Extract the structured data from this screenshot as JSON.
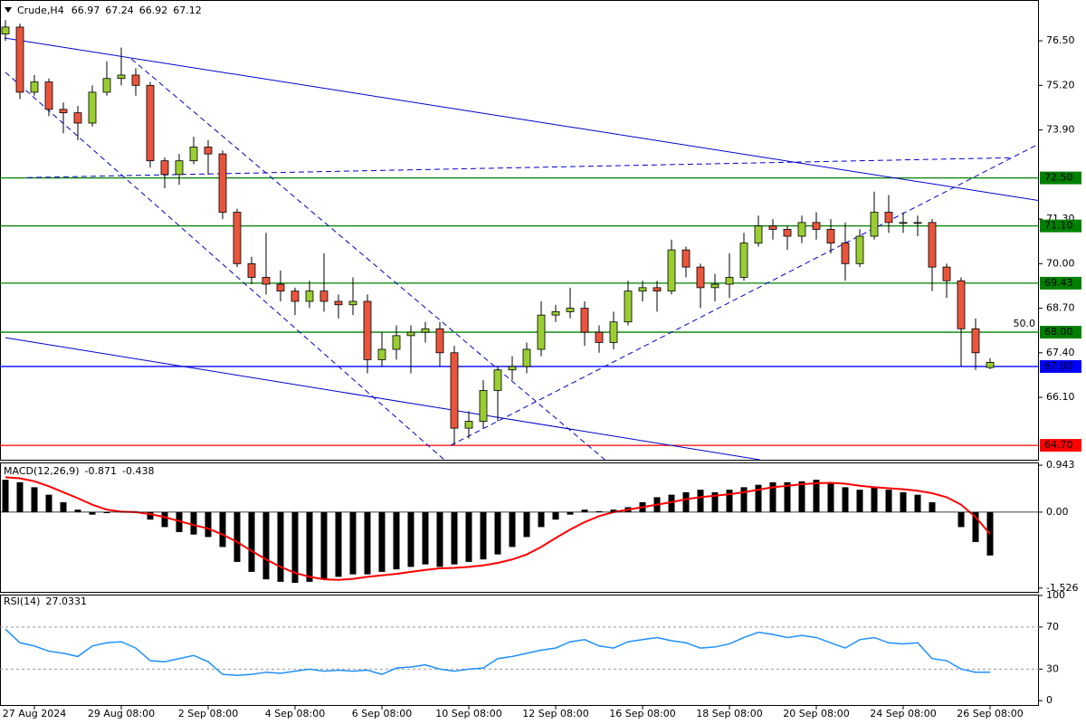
{
  "chart_data": [
    {
      "type": "candlestick",
      "title": "Crude,H4",
      "categories": [
        null,
        null,
        "27 Aug 2024",
        null,
        null,
        null,
        null,
        null,
        "29 Aug 08:00",
        null,
        null,
        null,
        null,
        null,
        "2 Sep 08:00",
        null,
        null,
        null,
        null,
        null,
        "4 Sep 08:00",
        null,
        null,
        null,
        null,
        null,
        "6 Sep 08:00",
        null,
        null,
        null,
        null,
        null,
        "10 Sep 08:00",
        null,
        null,
        null,
        null,
        null,
        "12 Sep 08:00",
        null,
        null,
        null,
        null,
        null,
        "16 Sep 08:00",
        null,
        null,
        null,
        null,
        null,
        "18 Sep 08:00",
        null,
        null,
        null,
        null,
        null,
        "20 Sep 08:00",
        null,
        null,
        null,
        null,
        null,
        "24 Sep 08:00",
        null,
        null,
        null,
        null,
        null,
        "26 Sep 08:00"
      ],
      "open": [
        76.7,
        76.9,
        75.0,
        75.3,
        74.5,
        74.4,
        74.1,
        75.0,
        75.4,
        75.5,
        75.2,
        73.0,
        72.6,
        73.0,
        73.4,
        73.2,
        71.5,
        70.0,
        69.6,
        69.4,
        69.2,
        68.9,
        69.2,
        68.9,
        68.8,
        68.9,
        67.2,
        67.5,
        67.9,
        68.0,
        68.1,
        67.4,
        65.2,
        65.4,
        66.3,
        66.9,
        67.0,
        67.5,
        68.5,
        68.6,
        68.7,
        68.0,
        67.7,
        68.3,
        69.2,
        69.3,
        69.2,
        70.4,
        69.9,
        69.3,
        69.4,
        69.6,
        70.6,
        71.1,
        71.0,
        70.8,
        71.2,
        71.0,
        70.6,
        70.0,
        70.8,
        71.5,
        71.2,
        71.2,
        71.2,
        69.9,
        69.5,
        68.1,
        66.97
      ],
      "high": [
        77.1,
        77.0,
        75.5,
        75.4,
        74.7,
        74.6,
        75.2,
        75.9,
        76.3,
        75.7,
        75.3,
        73.1,
        73.2,
        73.7,
        73.6,
        73.3,
        71.6,
        70.2,
        70.9,
        69.8,
        69.3,
        69.5,
        70.3,
        69.1,
        69.6,
        69.1,
        68.0,
        68.2,
        68.2,
        68.3,
        68.3,
        67.6,
        65.7,
        66.6,
        67.0,
        67.3,
        67.7,
        68.9,
        68.8,
        69.3,
        68.9,
        68.2,
        68.6,
        69.5,
        69.5,
        69.5,
        70.7,
        70.5,
        70.0,
        69.7,
        70.3,
        70.9,
        71.4,
        71.3,
        71.1,
        71.4,
        71.5,
        71.3,
        71.2,
        71.0,
        72.1,
        72.0,
        71.5,
        71.4,
        71.3,
        70.0,
        69.6,
        68.4,
        67.24
      ],
      "low": [
        76.5,
        74.8,
        74.9,
        74.3,
        73.8,
        73.6,
        74.0,
        74.9,
        75.2,
        74.9,
        72.8,
        72.2,
        72.3,
        72.9,
        72.6,
        71.3,
        69.9,
        69.4,
        69.1,
        68.9,
        68.5,
        68.7,
        68.6,
        68.4,
        68.5,
        66.8,
        67.0,
        67.2,
        66.8,
        67.7,
        67.0,
        64.7,
        64.9,
        65.2,
        65.4,
        66.6,
        66.8,
        67.3,
        68.3,
        68.4,
        67.6,
        67.4,
        67.5,
        68.2,
        68.9,
        68.6,
        69.1,
        69.6,
        68.7,
        68.9,
        69.0,
        69.5,
        70.5,
        70.7,
        70.4,
        70.6,
        70.7,
        70.3,
        69.5,
        69.9,
        70.7,
        70.9,
        70.9,
        70.8,
        69.2,
        69.0,
        67.0,
        66.9,
        66.92
      ],
      "close": [
        76.9,
        75.0,
        75.3,
        74.5,
        74.4,
        74.1,
        75.0,
        75.4,
        75.5,
        75.2,
        73.0,
        72.6,
        73.0,
        73.4,
        73.2,
        71.5,
        70.0,
        69.6,
        69.4,
        69.2,
        68.9,
        69.2,
        68.9,
        68.8,
        68.9,
        67.2,
        67.5,
        67.9,
        68.0,
        68.1,
        67.4,
        65.2,
        65.4,
        66.3,
        66.9,
        67.0,
        67.5,
        68.5,
        68.6,
        68.7,
        68.0,
        67.7,
        68.3,
        69.2,
        69.3,
        69.2,
        70.4,
        69.9,
        69.3,
        69.4,
        69.6,
        70.6,
        71.1,
        71.0,
        70.8,
        71.2,
        71.0,
        70.6,
        70.0,
        70.8,
        71.5,
        71.2,
        71.2,
        71.2,
        69.9,
        69.5,
        68.1,
        67.4,
        67.12
      ],
      "up_color": "#9acd32",
      "down_color": "#e8553c",
      "ylim": [
        64.28,
        77.69
      ],
      "yticks": [
        {
          "value": 76.5,
          "label": "76.50"
        },
        {
          "value": 75.2,
          "label": "75.20"
        },
        {
          "value": 73.9,
          "label": "73.90"
        },
        {
          "value": 71.3,
          "label": "71.30"
        },
        {
          "value": 70.0,
          "label": "70.00"
        },
        {
          "value": 68.7,
          "label": "68.70"
        },
        {
          "value": 67.4,
          "label": "67.40"
        },
        {
          "value": 66.1,
          "label": "66.10"
        }
      ],
      "levels": [
        {
          "value": 72.5,
          "label": "72.50",
          "color": "#008000"
        },
        {
          "value": 71.1,
          "label": "71.10",
          "color": "#008000"
        },
        {
          "value": 69.43,
          "label": "69.43",
          "color": "#008000"
        },
        {
          "value": 68.0,
          "label": "68.00",
          "color": "#008000",
          "note": "50.0"
        },
        {
          "value": 67.0,
          "label": "67.00",
          "color": "#0000ff"
        },
        {
          "value": 64.7,
          "label": "64.70",
          "color": "#ff0000"
        }
      ],
      "trend_lines": [
        {
          "from": [
            -0.06,
            76.58
          ],
          "to": [
            71.5,
            71.83
          ],
          "dashed": false
        },
        {
          "from": [
            0,
            67.84
          ],
          "to": [
            52.1,
            64.28
          ],
          "dashed": false
        },
        {
          "from": [
            0,
            75.58
          ],
          "to": [
            30.3,
            64.28
          ],
          "dashed": true
        },
        {
          "from": [
            8.7,
            75.97
          ],
          "to": [
            41.4,
            64.28
          ],
          "dashed": true
        },
        {
          "from": [
            30.75,
            64.7
          ],
          "to": [
            71.5,
            73.52
          ],
          "dashed": true
        },
        {
          "from": [
            1.5,
            72.51
          ],
          "to": [
            69.6,
            73.09
          ],
          "dashed": true
        }
      ],
      "line_color": "#0000cd"
    },
    {
      "type": "macd",
      "title": "MACD(12,26,9)",
      "series": [
        {
          "type": "bar",
          "color": "#000000",
          "values": [
            0.65,
            0.6,
            0.5,
            0.35,
            0.2,
            0.05,
            -0.05,
            -0.02,
            0.02,
            0.0,
            -0.15,
            -0.3,
            -0.4,
            -0.45,
            -0.5,
            -0.7,
            -1.0,
            -1.2,
            -1.35,
            -1.4,
            -1.42,
            -1.4,
            -1.35,
            -1.3,
            -1.25,
            -1.25,
            -1.2,
            -1.15,
            -1.1,
            -1.05,
            -1.1,
            -1.05,
            -1.0,
            -0.95,
            -0.85,
            -0.7,
            -0.5,
            -0.3,
            -0.15,
            -0.05,
            0.05,
            0.02,
            0.05,
            0.1,
            0.2,
            0.3,
            0.35,
            0.4,
            0.45,
            0.4,
            0.45,
            0.5,
            0.55,
            0.6,
            0.6,
            0.62,
            0.65,
            0.6,
            0.5,
            0.45,
            0.5,
            0.45,
            0.4,
            0.35,
            0.2,
            0.0,
            -0.3,
            -0.6,
            -0.871
          ]
        },
        {
          "type": "line",
          "color": "#ff0000",
          "values": [
            0.7,
            0.68,
            0.62,
            0.52,
            0.4,
            0.28,
            0.15,
            0.05,
            0.01,
            0.0,
            -0.04,
            -0.1,
            -0.18,
            -0.26,
            -0.33,
            -0.45,
            -0.6,
            -0.78,
            -0.95,
            -1.1,
            -1.22,
            -1.3,
            -1.35,
            -1.36,
            -1.34,
            -1.3,
            -1.27,
            -1.24,
            -1.2,
            -1.16,
            -1.13,
            -1.12,
            -1.1,
            -1.07,
            -1.02,
            -0.95,
            -0.85,
            -0.7,
            -0.52,
            -0.35,
            -0.2,
            -0.08,
            0.0,
            0.05,
            0.1,
            0.15,
            0.2,
            0.26,
            0.3,
            0.33,
            0.36,
            0.4,
            0.45,
            0.5,
            0.53,
            0.56,
            0.58,
            0.59,
            0.57,
            0.53,
            0.5,
            0.48,
            0.46,
            0.43,
            0.38,
            0.3,
            0.15,
            -0.1,
            -0.438
          ]
        }
      ],
      "ylim": [
        -1.62,
        0.98
      ],
      "yticks": [
        0.943,
        {
          "value": 0,
          "label": "0.00"
        },
        -1.526
      ]
    },
    {
      "type": "line",
      "title": "RSI(14)",
      "color": "#1e90ff",
      "values": [
        68,
        55,
        52,
        47,
        45,
        42,
        52,
        55,
        56,
        50,
        38,
        37,
        40,
        43,
        37,
        25,
        24,
        25,
        27,
        26,
        28,
        30,
        28,
        29,
        28,
        29,
        25,
        31,
        32,
        34,
        30,
        28,
        30,
        31,
        40,
        42,
        45,
        48,
        50,
        56,
        58,
        52,
        50,
        56,
        58,
        60,
        57,
        55,
        50,
        51,
        54,
        60,
        65,
        63,
        60,
        62,
        60,
        55,
        50,
        58,
        60,
        55,
        54,
        55,
        40,
        38,
        30,
        27,
        27.0331
      ],
      "ylim": [
        -5,
        100
      ],
      "yticks": [
        100,
        70,
        30,
        0
      ],
      "levels": [
        70,
        30
      ]
    }
  ]
}
